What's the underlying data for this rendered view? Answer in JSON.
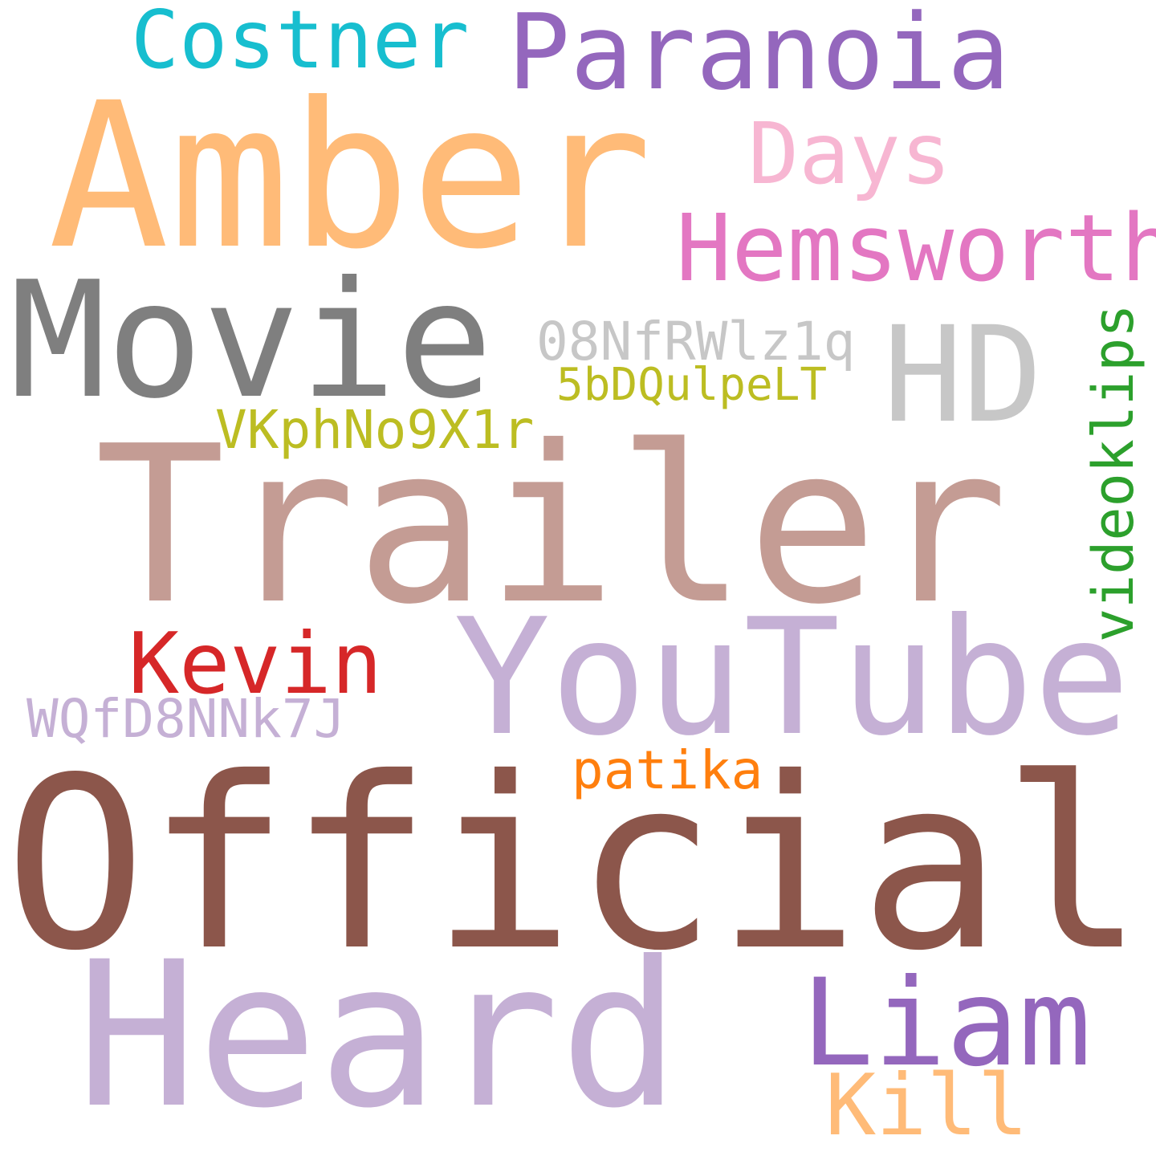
{
  "words": [
    {
      "text": "Official",
      "color": "#8c564b"
    },
    {
      "text": "Trailer",
      "color": "#c49c94"
    },
    {
      "text": "Amber",
      "color": "#ffbb78"
    },
    {
      "text": "Heard",
      "color": "#c5b0d5"
    },
    {
      "text": "Movie",
      "color": "#7f7f7f"
    },
    {
      "text": "YouTube",
      "color": "#c5b0d5"
    },
    {
      "text": "HD",
      "color": "#c7c7c7"
    },
    {
      "text": "Paranoia",
      "color": "#9467bd"
    },
    {
      "text": "Hemsworth",
      "color": "#e377c2"
    },
    {
      "text": "Liam",
      "color": "#9467bd"
    },
    {
      "text": "Costner",
      "color": "#17becf"
    },
    {
      "text": "Days",
      "color": "#f7b6d2"
    },
    {
      "text": "Kevin",
      "color": "#d62728"
    },
    {
      "text": "Kill",
      "color": "#ffbb78"
    },
    {
      "text": "videoklips",
      "color": "#2ca02c"
    },
    {
      "text": "08NfRWlz1q",
      "color": "#c7c7c7"
    },
    {
      "text": "WQfD8NNk7J",
      "color": "#c5b0d5"
    },
    {
      "text": "VKphNo9X1r",
      "color": "#bcbd22"
    },
    {
      "text": "patika",
      "color": "#ff7f0e"
    },
    {
      "text": "5bDQulpeLT",
      "color": "#bcbd22"
    }
  ]
}
